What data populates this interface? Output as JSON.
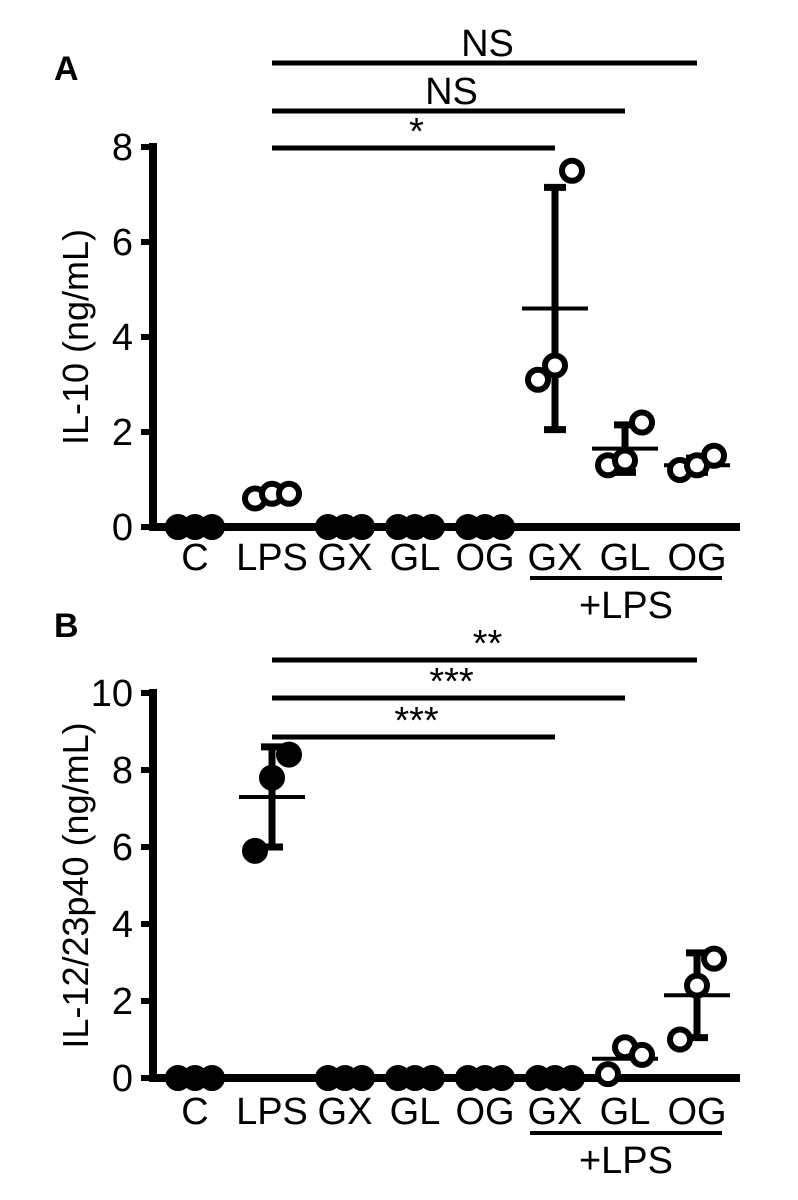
{
  "chart_data": [
    {
      "type": "scatter",
      "panel_label": "A",
      "ylabel": "IL-10 (ng/mL)",
      "ylim": [
        0,
        8
      ],
      "yticks": [
        "0",
        "2",
        "4",
        "6",
        "8"
      ],
      "categories": [
        "C",
        "LPS",
        "GX",
        "GL",
        "OG",
        "GX",
        "GL",
        "OG"
      ],
      "group_label": "+LPS",
      "group_span": [
        5,
        7
      ],
      "points": [
        [
          0,
          0,
          0
        ],
        [
          0.6,
          0.7,
          0.7
        ],
        [
          0,
          0,
          0
        ],
        [
          0,
          0,
          0
        ],
        [
          0,
          0,
          0
        ],
        [
          3.1,
          3.4,
          7.5
        ],
        [
          1.3,
          1.4,
          2.2
        ],
        [
          1.2,
          1.3,
          1.5
        ]
      ],
      "mean": [
        null,
        null,
        null,
        null,
        null,
        4.6,
        1.65,
        1.3
      ],
      "sd": [
        null,
        null,
        null,
        null,
        null,
        2.55,
        0.5,
        0.15
      ],
      "filled_points": [
        0,
        2,
        3,
        4
      ],
      "comparisons": [
        {
          "from": 1,
          "to": 5,
          "label": "*"
        },
        {
          "from": 1,
          "to": 6,
          "label": "NS"
        },
        {
          "from": 1,
          "to": 7,
          "label": "NS"
        }
      ]
    },
    {
      "type": "scatter",
      "panel_label": "B",
      "ylabel": "IL-12/23p40 (ng/mL)",
      "ylim": [
        0,
        10
      ],
      "yticks": [
        "0",
        "2",
        "4",
        "6",
        "8",
        "10"
      ],
      "categories": [
        "C",
        "LPS",
        "GX",
        "GL",
        "OG",
        "GX",
        "GL",
        "OG"
      ],
      "group_label": "+LPS",
      "group_span": [
        5,
        7
      ],
      "points": [
        [
          0,
          0,
          0
        ],
        [
          5.9,
          7.8,
          8.4
        ],
        [
          0,
          0,
          0
        ],
        [
          0,
          0,
          0
        ],
        [
          0,
          0,
          0
        ],
        [
          0,
          0,
          0
        ],
        [
          0.1,
          0.8,
          0.6
        ],
        [
          1.0,
          2.4,
          3.1
        ]
      ],
      "mean": [
        null,
        7.3,
        null,
        null,
        null,
        null,
        0.5,
        2.15
      ],
      "sd": [
        null,
        1.3,
        null,
        null,
        null,
        null,
        null,
        1.1
      ],
      "filled_points": [
        0,
        1,
        2,
        3,
        4,
        5
      ],
      "comparisons": [
        {
          "from": 1,
          "to": 5,
          "label": "***"
        },
        {
          "from": 1,
          "to": 6,
          "label": "***"
        },
        {
          "from": 1,
          "to": 7,
          "label": "**"
        }
      ]
    }
  ]
}
